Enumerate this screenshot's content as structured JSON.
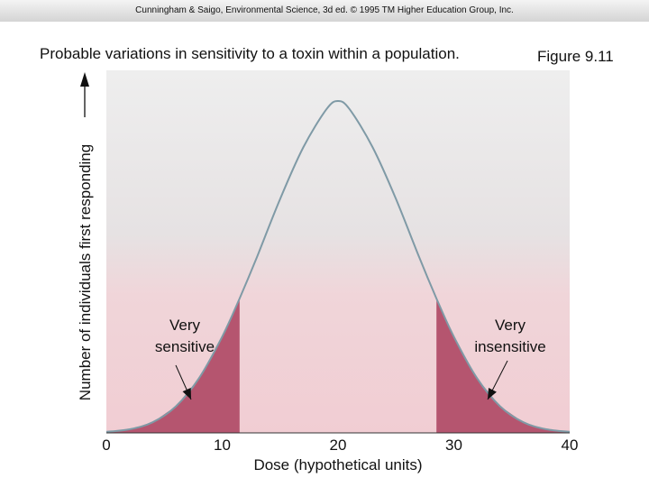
{
  "header": {
    "credit": "Cunningham & Saigo, Environmental Science, 3d ed. © 1995 TM Higher Education Group, Inc."
  },
  "figure_label": "Figure 9.11",
  "colors": {
    "curve": "#7f9aa6",
    "shaded_tail": "#b5556f",
    "plot_bg_top": "#eeeeee",
    "plot_bg_bottom": "#f1cdd3",
    "text": "#111111"
  },
  "chart_data": {
    "type": "area",
    "title": "Probable variations in sensitivity to a toxin within a population.",
    "xlabel": "Dose (hypothetical units)",
    "ylabel": "Number of individuals first responding",
    "xlim": [
      0,
      40
    ],
    "ylim": [
      0,
      1
    ],
    "x_ticks": [
      0,
      10,
      20,
      30,
      40
    ],
    "grid": false,
    "legend": "none",
    "series": [
      {
        "x": [
          0,
          2,
          4,
          6,
          8,
          10,
          11.5,
          13,
          15,
          17,
          19,
          20,
          21,
          23,
          25,
          27,
          28.5,
          30,
          32,
          34,
          36,
          38,
          40
        ],
        "y": [
          0.003,
          0.011,
          0.032,
          0.08,
          0.165,
          0.29,
          0.405,
          0.53,
          0.705,
          0.86,
          0.975,
          1.0,
          0.975,
          0.86,
          0.705,
          0.53,
          0.405,
          0.29,
          0.165,
          0.08,
          0.032,
          0.011,
          0.003
        ]
      }
    ],
    "shaded_regions": [
      {
        "from": 0,
        "to": 11.5
      },
      {
        "from": 28.5,
        "to": 40
      }
    ],
    "annotations": [
      {
        "line1": "Very",
        "line2": "sensitive",
        "x": 7.5
      },
      {
        "line1": "Very",
        "line2": "insensitive",
        "x": 35
      }
    ]
  }
}
